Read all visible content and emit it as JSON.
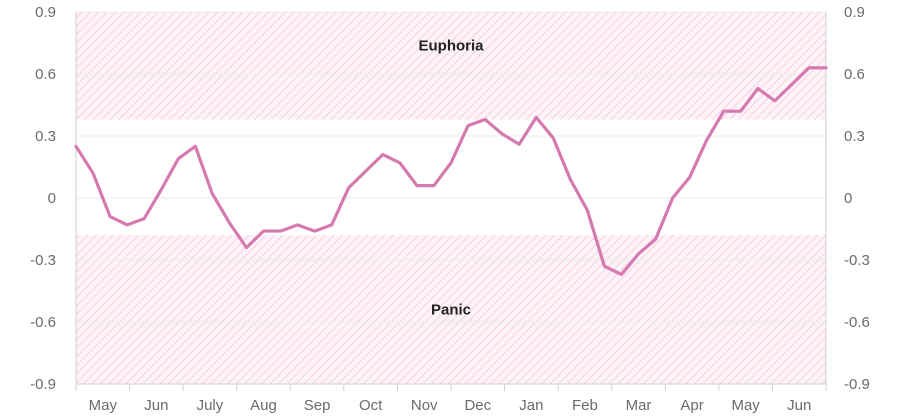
{
  "chart_data": {
    "type": "line",
    "y_ticks": [
      "-0.9",
      "-0.6",
      "-0.3",
      "0",
      "0.3",
      "0.6",
      "0.9"
    ],
    "y_tick_values": [
      -0.9,
      -0.6,
      -0.3,
      0,
      0.3,
      0.6,
      0.9
    ],
    "ylim": [
      -0.9,
      0.9
    ],
    "x_labels": [
      "May",
      "Jun",
      "July",
      "Aug",
      "Sep",
      "Oct",
      "Nov",
      "Dec",
      "Jan",
      "Feb",
      "Mar",
      "Apr",
      "May",
      "Jun"
    ],
    "bands": [
      {
        "label": "Euphoria",
        "from": 0.38,
        "to": 0.9
      },
      {
        "label": "Panic",
        "from": -0.9,
        "to": -0.18
      }
    ],
    "series": [
      {
        "color": "#d47aaf",
        "values": [
          0.25,
          0.12,
          -0.09,
          -0.13,
          -0.1,
          0.04,
          0.19,
          0.25,
          0.02,
          -0.12,
          -0.24,
          -0.16,
          -0.16,
          -0.13,
          -0.16,
          -0.13,
          0.05,
          0.13,
          0.21,
          0.17,
          0.06,
          0.06,
          0.17,
          0.35,
          0.38,
          0.31,
          0.26,
          0.39,
          0.29,
          0.09,
          -0.06,
          -0.33,
          -0.37,
          -0.27,
          -0.2,
          0.0,
          0.1,
          0.28,
          0.42,
          0.42,
          0.53,
          0.47,
          0.55,
          0.63,
          0.63
        ]
      }
    ],
    "grid": true,
    "colors": {
      "line": "#d47aaf",
      "band_hatch": "#f3c6da",
      "grid": "#ececec",
      "axis": "#cfcfcf"
    }
  }
}
